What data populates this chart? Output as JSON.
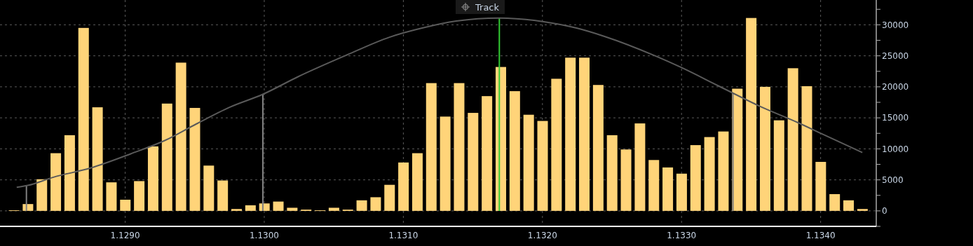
{
  "chart_data": {
    "type": "bar",
    "x": [
      1.1282,
      1.1283,
      1.1284,
      1.1285,
      1.1286,
      1.1287,
      1.1288,
      1.1289,
      1.129,
      1.1291,
      1.1292,
      1.1293,
      1.1294,
      1.1295,
      1.1296,
      1.1297,
      1.1298,
      1.1299,
      1.13,
      1.1301,
      1.1302,
      1.1303,
      1.1304,
      1.1305,
      1.1306,
      1.1307,
      1.1308,
      1.1309,
      1.131,
      1.1311,
      1.1312,
      1.1313,
      1.1314,
      1.1315,
      1.1316,
      1.1317,
      1.1318,
      1.1319,
      1.132,
      1.1321,
      1.1322,
      1.1323,
      1.1324,
      1.1325,
      1.1326,
      1.1327,
      1.1328,
      1.1329,
      1.133,
      1.1331,
      1.1332,
      1.1333,
      1.1334,
      1.1335,
      1.1336,
      1.1337,
      1.1338,
      1.1339,
      1.134,
      1.1341,
      1.1342,
      1.1343
    ],
    "series": [
      {
        "color": "#ffd479",
        "values": [
          100,
          1100,
          5100,
          9300,
          12200,
          29500,
          16700,
          4600,
          1800,
          4800,
          10400,
          17300,
          23900,
          16600,
          7300,
          4900,
          300,
          900,
          1200,
          1500,
          500,
          200,
          100,
          500,
          200,
          1700,
          2200,
          4200,
          7800,
          9300,
          20600,
          15200,
          20600,
          15800,
          18500,
          23200,
          19300,
          15500,
          14500,
          21300,
          24700,
          24700,
          20300,
          12200,
          9900,
          14100,
          8200,
          7000,
          6000,
          10600,
          11900,
          12800,
          19700,
          31100,
          20000,
          14600,
          23000,
          20100,
          7900,
          2700,
          1700,
          300
        ]
      },
      {
        "type": "line",
        "color": "#5a5a5a",
        "x": [
          1.12822,
          1.1283,
          1.12848,
          1.12875,
          1.12904,
          1.12929,
          1.12951,
          1.12975,
          1.12999,
          1.13024,
          1.13059,
          1.1309,
          1.13114,
          1.13138,
          1.13169,
          1.13201,
          1.13224,
          1.13245,
          1.13281,
          1.133,
          1.13327,
          1.13356,
          1.13384,
          1.13403,
          1.1343
        ],
        "values": [
          3800,
          4100,
          5400,
          6900,
          9200,
          11400,
          14000,
          16700,
          18800,
          21600,
          25100,
          28000,
          29500,
          30600,
          31100,
          30500,
          29500,
          28100,
          25000,
          23100,
          20100,
          16900,
          14200,
          12200,
          9400
        ]
      }
    ],
    "xlim": [
      1.1281,
      1.1344
    ],
    "xticks": [
      {
        "value": 1.129,
        "label": "1.1290"
      },
      {
        "value": 1.13,
        "label": "1.1300"
      },
      {
        "value": 1.131,
        "label": "1.1310"
      },
      {
        "value": 1.132,
        "label": "1.1320"
      },
      {
        "value": 1.133,
        "label": "1.1330"
      },
      {
        "value": 1.134,
        "label": "1.1340"
      }
    ],
    "ylim": [
      -2500,
      34000
    ],
    "yticks": [
      {
        "value": -2500,
        "label": null
      },
      0,
      {
        "value": 2500,
        "label": null
      },
      5000,
      {
        "value": 7500,
        "label": null
      },
      10000,
      {
        "value": 12500,
        "label": null
      },
      15000,
      {
        "value": 17500,
        "label": null
      },
      20000,
      {
        "value": 22500,
        "label": null
      },
      25000,
      {
        "value": 27500,
        "label": null
      },
      30000,
      {
        "value": 32500,
        "label": null
      }
    ],
    "grid": true,
    "marker": "none",
    "ref_lines": [
      {
        "axis": "x",
        "value": 1.12829,
        "color": "#808080"
      },
      {
        "axis": "x",
        "value": 1.12999,
        "color": "#808080"
      },
      {
        "axis": "x",
        "value": 1.13337,
        "color": "#808080"
      },
      {
        "axis": "x",
        "value": 1.13169,
        "color": "#33cc33"
      }
    ],
    "annotations": [
      "Track"
    ]
  }
}
